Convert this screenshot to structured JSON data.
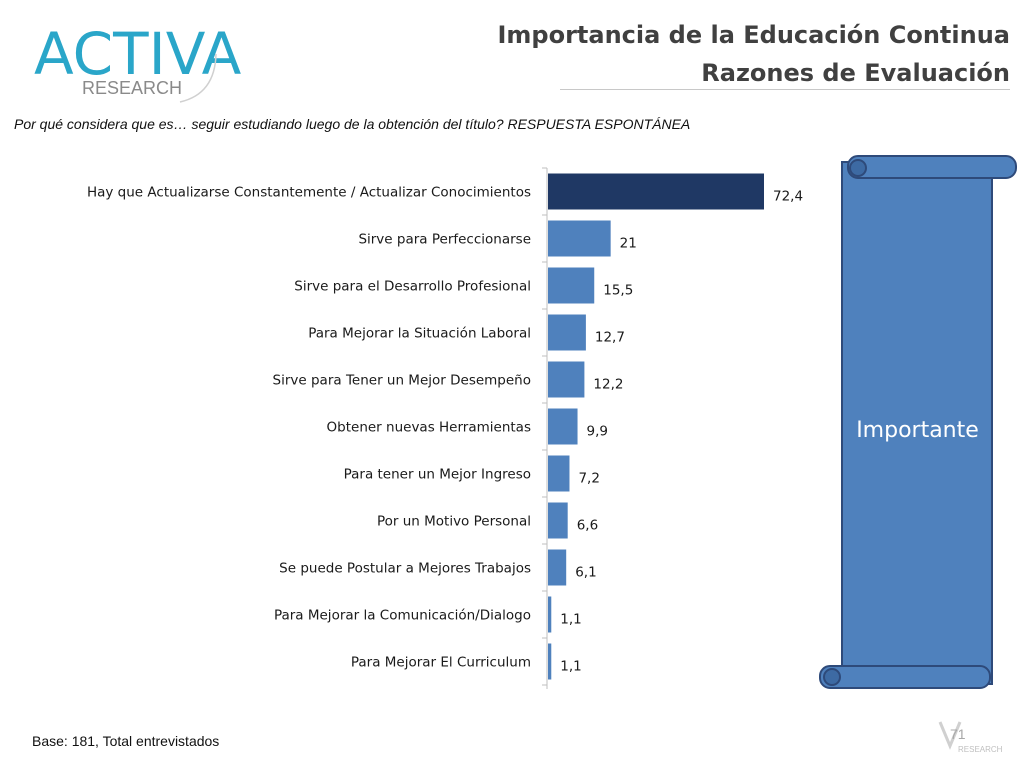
{
  "logo": {
    "brand": "ACTIVA",
    "sub": "RESEARCH"
  },
  "header": {
    "title_line1": "Importancia de la Educación Continua",
    "title_line2": "Razones de Evaluación"
  },
  "question": "Por qué considera que es… seguir estudiando luego de la obtención del título? RESPUESTA ESPONTÁNEA",
  "banner": {
    "label": "Importante"
  },
  "footer": {
    "base": "Base: 181, Total entrevistados",
    "page": "71",
    "mini_logo_sub": "RESEARCH"
  },
  "colors": {
    "highlight_bar": "#1f3864",
    "bar": "#4f81bd",
    "banner_fill": "#4f81bd",
    "banner_border": "#2e4a7a",
    "axis": "#bfbfbf"
  },
  "chart_data": {
    "type": "bar",
    "orientation": "horizontal",
    "categories": [
      "Hay que Actualizarse Constantemente / Actualizar Conocimientos",
      "Sirve para Perfeccionarse",
      "Sirve para el Desarrollo Profesional",
      "Para Mejorar la Situación Laboral",
      "Sirve para Tener un Mejor Desempeño",
      "Obtener nuevas Herramientas",
      "Para tener un Mejor Ingreso",
      "Por un Motivo Personal",
      "Se puede Postular a Mejores Trabajos",
      "Para Mejorar la Comunicación/Dialogo",
      "Para Mejorar El Curriculum"
    ],
    "values": [
      72.4,
      21,
      15.5,
      12.7,
      12.2,
      9.9,
      7.2,
      6.6,
      6.1,
      1.1,
      1.1
    ],
    "value_labels": [
      "72,4",
      "21",
      "15,5",
      "12,7",
      "12,2",
      "9,9",
      "7,2",
      "6,6",
      "6,1",
      "1,1",
      "1,1"
    ],
    "xlim": [
      0,
      72.4
    ],
    "grid": false,
    "legend": "none"
  }
}
